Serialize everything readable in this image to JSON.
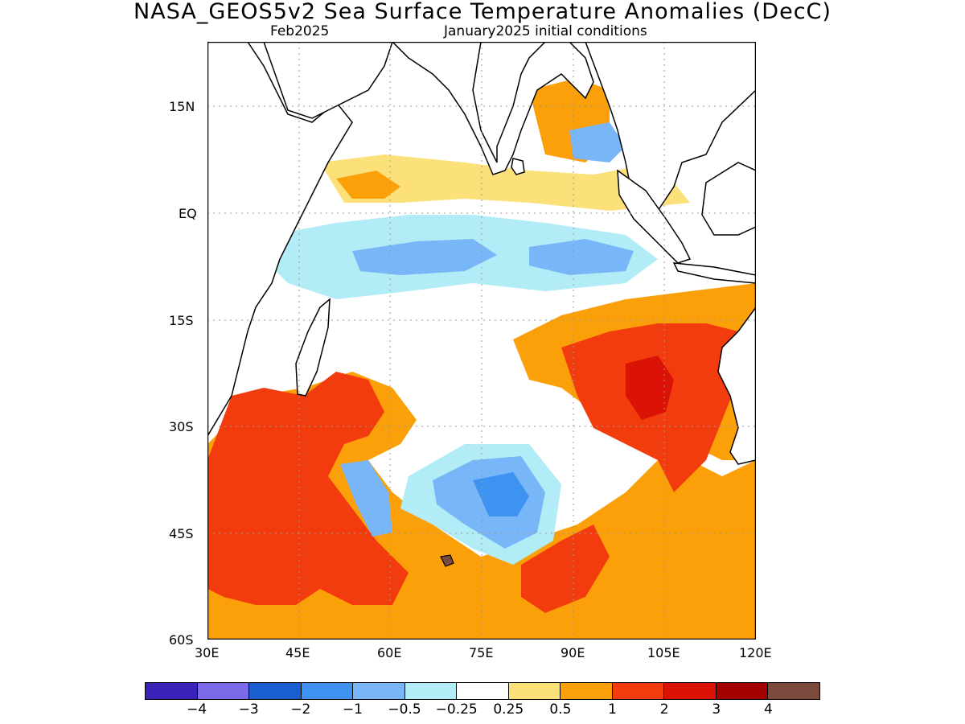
{
  "title": "NASA_GEOS5v2 Sea Surface Temperature Anomalies (DecC)",
  "subtitle_left": "Feb2025",
  "subtitle_right": "January2025 initial conditions",
  "lat_ticks": [
    "15N",
    "EQ",
    "15S",
    "30S",
    "45S",
    "60S"
  ],
  "lon_ticks": [
    "30E",
    "45E",
    "60E",
    "75E",
    "90E",
    "105E",
    "120E"
  ],
  "colorbar": {
    "colors": [
      "#3b22b8",
      "#7b6be8",
      "#1a5fd0",
      "#3f93f0",
      "#78b6f8",
      "#b2ecf6",
      "#ffffff",
      "#fce079",
      "#fca00a",
      "#f23c0e",
      "#da1306",
      "#a30000",
      "#7b4a3c"
    ],
    "labels": [
      "-4",
      "-3",
      "-2",
      "-1",
      "-0.5",
      "-0.25",
      "0.25",
      "0.5",
      "1",
      "2",
      "3",
      "4"
    ]
  },
  "map_data": {
    "region": {
      "lon_range": [
        30,
        120
      ],
      "lat_range": [
        -60,
        24
      ]
    },
    "grid": "dotted",
    "land_color": "#ffffff"
  }
}
